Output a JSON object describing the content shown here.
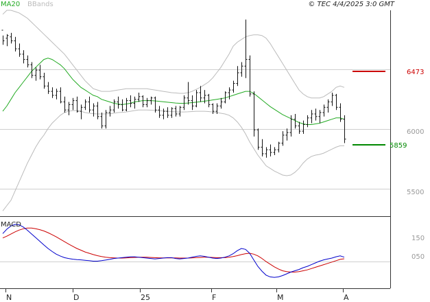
{
  "header": {
    "ma_label": "MA20",
    "bb_label": "BBands",
    "copyright": "© TEC 4/4/2025 3:0 GMT"
  },
  "price_axis": {
    "labels": [
      "6000",
      "5500"
    ]
  },
  "levels": {
    "resistance": {
      "value": "6473",
      "color": "#cc0000"
    },
    "support": {
      "value": "5859",
      "color": "#008800"
    }
  },
  "macd_panel": {
    "title": "MACD",
    "axis_labels": [
      "150",
      "050"
    ]
  },
  "chart_data": [
    {
      "type": "line",
      "title": "",
      "xlabel": "",
      "ylabel": "",
      "x_tick_labels": [
        "N",
        "D",
        "25",
        "F",
        "M",
        "A"
      ],
      "ylim": [
        5400,
        6950
      ],
      "series": [
        {
          "name": "",
          "kind": "ohlc",
          "values": [
            [
              6800,
              6760,
              6690,
              6720
            ],
            [
              6740,
              6770,
              6680,
              6760
            ],
            [
              6750,
              6780,
              6700,
              6720
            ],
            [
              6720,
              6750,
              6640,
              6660
            ],
            [
              6660,
              6700,
              6600,
              6620
            ],
            [
              6620,
              6650,
              6550,
              6580
            ],
            [
              6580,
              6610,
              6520,
              6540
            ],
            [
              6540,
              6560,
              6440,
              6460
            ],
            [
              6460,
              6520,
              6420,
              6500
            ],
            [
              6500,
              6540,
              6430,
              6450
            ],
            [
              6450,
              6480,
              6360,
              6380
            ],
            [
              6380,
              6410,
              6320,
              6340
            ],
            [
              6340,
              6370,
              6290,
              6310
            ],
            [
              6310,
              6360,
              6280,
              6340
            ],
            [
              6340,
              6370,
              6250,
              6260
            ],
            [
              6260,
              6300,
              6180,
              6200
            ],
            [
              6200,
              6260,
              6160,
              6240
            ],
            [
              6240,
              6290,
              6200,
              6270
            ],
            [
              6270,
              6300,
              6180,
              6190
            ],
            [
              6190,
              6240,
              6130,
              6220
            ],
            [
              6220,
              6280,
              6200,
              6260
            ],
            [
              6260,
              6300,
              6180,
              6200
            ],
            [
              6200,
              6250,
              6150,
              6230
            ],
            [
              6230,
              6260,
              6130,
              6150
            ],
            [
              6150,
              6180,
              6060,
              6080
            ],
            [
              6080,
              6200,
              6060,
              6180
            ],
            [
              6180,
              6230,
              6150,
              6200
            ],
            [
              6200,
              6280,
              6180,
              6260
            ],
            [
              6260,
              6300,
              6210,
              6240
            ],
            [
              6240,
              6280,
              6190,
              6200
            ],
            [
              6200,
              6290,
              6190,
              6270
            ],
            [
              6270,
              6310,
              6220,
              6250
            ],
            [
              6250,
              6300,
              6210,
              6280
            ],
            [
              6280,
              6330,
              6260,
              6300
            ],
            [
              6300,
              6310,
              6220,
              6240
            ],
            [
              6240,
              6290,
              6220,
              6270
            ],
            [
              6270,
              6300,
              6240,
              6290
            ],
            [
              6290,
              6300,
              6180,
              6200
            ],
            [
              6200,
              6230,
              6140,
              6160
            ],
            [
              6160,
              6210,
              6130,
              6190
            ],
            [
              6190,
              6220,
              6140,
              6160
            ],
            [
              6160,
              6220,
              6140,
              6210
            ],
            [
              6210,
              6230,
              6150,
              6170
            ],
            [
              6170,
              6230,
              6150,
              6220
            ],
            [
              6220,
              6310,
              6200,
              6290
            ],
            [
              6290,
              6410,
              6240,
              6270
            ],
            [
              6270,
              6310,
              6200,
              6230
            ],
            [
              6230,
              6350,
              6220,
              6330
            ],
            [
              6330,
              6380,
              6260,
              6290
            ],
            [
              6290,
              6350,
              6250,
              6310
            ],
            [
              6310,
              6320,
              6220,
              6240
            ],
            [
              6240,
              6250,
              6170,
              6190
            ],
            [
              6190,
              6250,
              6170,
              6230
            ],
            [
              6230,
              6290,
              6210,
              6260
            ],
            [
              6260,
              6340,
              6250,
              6330
            ],
            [
              6330,
              6370,
              6280,
              6350
            ],
            [
              6350,
              6420,
              6330,
              6400
            ],
            [
              6400,
              6530,
              6380,
              6480
            ],
            [
              6480,
              6560,
              6450,
              6530
            ],
            [
              6530,
              6880,
              6440,
              6580
            ],
            [
              6580,
              6610,
              6300,
              6320
            ],
            [
              6320,
              6340,
              6000,
              6050
            ],
            [
              6050,
              6060,
              5900,
              5920
            ],
            [
              5920,
              5980,
              5850,
              5870
            ],
            [
              5870,
              5920,
              5840,
              5900
            ],
            [
              5900,
              5940,
              5850,
              5880
            ],
            [
              5880,
              5920,
              5860,
              5900
            ],
            [
              5900,
              5960,
              5880,
              5950
            ],
            [
              5950,
              6040,
              5930,
              6010
            ],
            [
              6010,
              6060,
              5970,
              6030
            ],
            [
              6030,
              6160,
              6000,
              6130
            ],
            [
              6130,
              6170,
              6060,
              6080
            ],
            [
              6080,
              6110,
              6020,
              6040
            ],
            [
              6040,
              6120,
              6020,
              6090
            ],
            [
              6090,
              6160,
              6070,
              6140
            ],
            [
              6140,
              6200,
              6100,
              6170
            ],
            [
              6170,
              6210,
              6120,
              6150
            ],
            [
              6150,
              6200,
              6100,
              6180
            ],
            [
              6180,
              6240,
              6150,
              6220
            ],
            [
              6220,
              6280,
              6180,
              6260
            ],
            [
              6260,
              6330,
              6230,
              6310
            ],
            [
              6310,
              6320,
              6200,
              6220
            ],
            [
              6220,
              6250,
              6110,
              6130
            ],
            [
              6130,
              6160,
              5950,
              5980
            ]
          ]
        },
        {
          "name": "MA20",
          "color": "#22aa22",
          "values": [
            6190,
            6230,
            6280,
            6330,
            6370,
            6410,
            6450,
            6490,
            6520,
            6550,
            6580,
            6590,
            6580,
            6560,
            6540,
            6510,
            6470,
            6430,
            6400,
            6370,
            6350,
            6330,
            6310,
            6300,
            6280,
            6270,
            6260,
            6250,
            6245,
            6240,
            6245,
            6250,
            6260,
            6265,
            6270,
            6270,
            6270,
            6268,
            6265,
            6262,
            6258,
            6255,
            6252,
            6250,
            6250,
            6252,
            6255,
            6258,
            6262,
            6266,
            6270,
            6275,
            6280,
            6285,
            6290,
            6300,
            6310,
            6320,
            6330,
            6340,
            6340,
            6325,
            6300,
            6275,
            6250,
            6225,
            6205,
            6185,
            6165,
            6150,
            6135,
            6120,
            6105,
            6095,
            6090,
            6090,
            6095,
            6100,
            6110,
            6120,
            6130,
            6140,
            6140,
            6130
          ]
        },
        {
          "name": "BBands",
          "kind": "upper-band",
          "color": "#bbbbbb",
          "values": [
            6920,
            6950,
            6950,
            6940,
            6930,
            6910,
            6890,
            6860,
            6830,
            6800,
            6770,
            6740,
            6710,
            6680,
            6650,
            6620,
            6580,
            6540,
            6500,
            6460,
            6420,
            6390,
            6360,
            6350,
            6340,
            6340,
            6340,
            6345,
            6350,
            6355,
            6360,
            6360,
            6360,
            6360,
            6360,
            6360,
            6355,
            6350,
            6345,
            6340,
            6335,
            6330,
            6328,
            6325,
            6325,
            6330,
            6340,
            6355,
            6370,
            6390,
            6410,
            6440,
            6480,
            6520,
            6570,
            6620,
            6680,
            6710,
            6730,
            6750,
            6760,
            6765,
            6765,
            6760,
            6740,
            6700,
            6650,
            6600,
            6550,
            6500,
            6450,
            6400,
            6350,
            6320,
            6300,
            6290,
            6290,
            6290,
            6300,
            6320,
            6340,
            6370,
            6380,
            6370
          ]
        },
        {
          "name": "BBands",
          "kind": "lower-band",
          "color": "#bbbbbb",
          "values": [
            5440,
            5480,
            5520,
            5590,
            5660,
            5730,
            5800,
            5860,
            5920,
            5970,
            6010,
            6060,
            6100,
            6130,
            6160,
            6180,
            6190,
            6195,
            6195,
            6190,
            6180,
            6175,
            6172,
            6170,
            6170,
            6170,
            6172,
            6175,
            6180,
            6182,
            6185,
            6190,
            6195,
            6200,
            6200,
            6200,
            6198,
            6196,
            6194,
            6192,
            6190,
            6188,
            6186,
            6185,
            6185,
            6186,
            6188,
            6190,
            6190,
            6190,
            6188,
            6185,
            6180,
            6175,
            6170,
            6160,
            6140,
            6110,
            6070,
            6020,
            5960,
            5910,
            5860,
            5820,
            5780,
            5760,
            5740,
            5725,
            5710,
            5705,
            5710,
            5730,
            5760,
            5800,
            5830,
            5850,
            5860,
            5865,
            5875,
            5890,
            5905,
            5920,
            5930,
            5930
          ]
        }
      ]
    },
    {
      "type": "line",
      "title": "MACD",
      "xlabel": "",
      "ylabel": "",
      "ylim": [
        -120,
        200
      ],
      "series": [
        {
          "name": "",
          "color": "#0000cc",
          "values": [
            130,
            150,
            165,
            172,
            170,
            160,
            145,
            128,
            112,
            95,
            78,
            62,
            48,
            36,
            27,
            20,
            16,
            13,
            11,
            10,
            8,
            6,
            4,
            4,
            6,
            9,
            12,
            16,
            18,
            20,
            22,
            24,
            24,
            22,
            20,
            18,
            16,
            14,
            16,
            18,
            20,
            20,
            16,
            14,
            16,
            18,
            22,
            26,
            28,
            26,
            22,
            18,
            16,
            18,
            22,
            28,
            38,
            52,
            62,
            58,
            40,
            10,
            -20,
            -42,
            -60,
            -68,
            -70,
            -68,
            -62,
            -54,
            -46,
            -40,
            -34,
            -26,
            -20,
            -12,
            -4,
            4,
            10,
            14,
            18,
            24,
            28,
            22
          ]
        },
        {
          "name": "",
          "color": "#cc0000",
          "values": [
            110,
            118,
            128,
            138,
            146,
            152,
            155,
            155,
            152,
            148,
            142,
            134,
            125,
            115,
            104,
            93,
            82,
            72,
            62,
            54,
            46,
            40,
            34,
            29,
            25,
            22,
            20,
            19,
            18,
            18,
            19,
            20,
            21,
            22,
            22,
            22,
            21,
            20,
            19,
            19,
            19,
            19,
            19,
            18,
            18,
            18,
            19,
            20,
            21,
            22,
            22,
            21,
            20,
            20,
            20,
            22,
            25,
            29,
            34,
            38,
            40,
            36,
            28,
            16,
            2,
            -10,
            -22,
            -32,
            -40,
            -44,
            -46,
            -46,
            -44,
            -40,
            -36,
            -30,
            -24,
            -18,
            -12,
            -6,
            0,
            6,
            12,
            15
          ]
        }
      ]
    }
  ]
}
